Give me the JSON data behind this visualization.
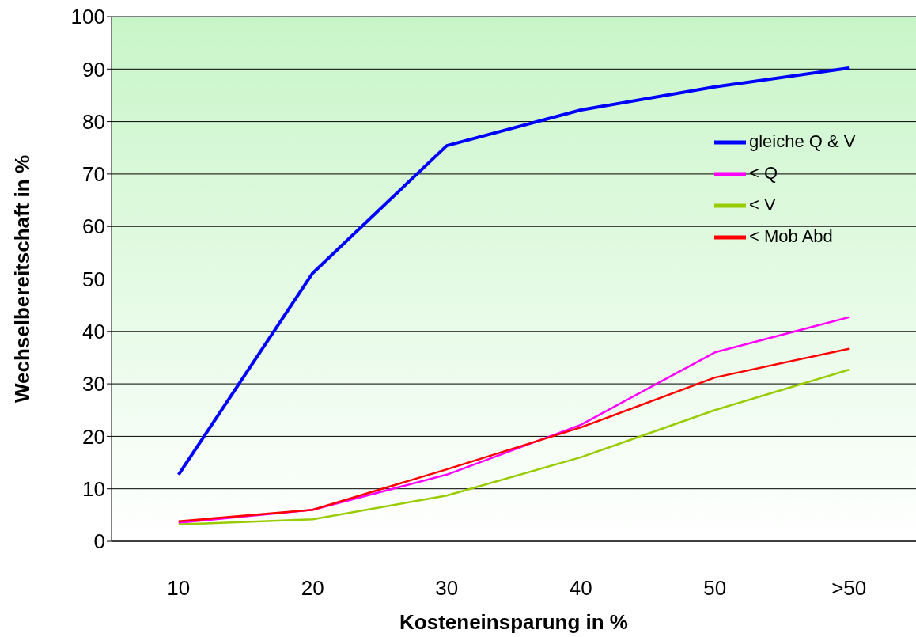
{
  "chart_data": {
    "type": "line",
    "xlabel": "Kosteneinsparung in %",
    "ylabel": "Wechselbereitschaft in %",
    "categories": [
      "10",
      "20",
      "30",
      "40",
      "50",
      ">50"
    ],
    "series": [
      {
        "name": "gleiche Q & V",
        "color": "#0000ff",
        "values": [
          12.7,
          51.1,
          75.4,
          82.2,
          86.6,
          90.2
        ]
      },
      {
        "name": "< Q",
        "color": "#ff00ff",
        "values": [
          3.5,
          6.0,
          12.7,
          22.2,
          36.0,
          42.7
        ]
      },
      {
        "name": "< V",
        "color": "#99cc00",
        "values": [
          3.2,
          4.2,
          8.7,
          16.0,
          25.0,
          32.7
        ]
      },
      {
        "name": "< Mob Abd",
        "color": "#ff0000",
        "values": [
          3.8,
          6.0,
          13.7,
          21.7,
          31.2,
          36.7
        ]
      }
    ],
    "ylim": [
      0,
      100
    ],
    "yticks": [
      0,
      10,
      20,
      30,
      40,
      50,
      60,
      70,
      80,
      90,
      100
    ],
    "grid": "y",
    "legend": "top right",
    "marker": "none",
    "line_style": "solid"
  }
}
